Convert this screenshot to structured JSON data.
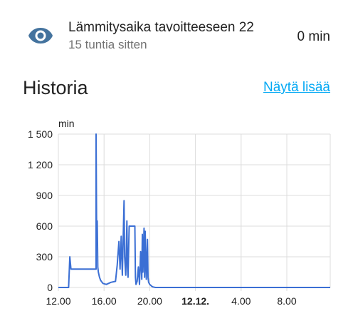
{
  "entity": {
    "icon": "eye-icon",
    "name": "Lämmitysaika tavoitteeseen 22",
    "last_changed": "15 tuntia sitten",
    "state": "0 min",
    "icon_color": "#44739e"
  },
  "history": {
    "title": "Historia",
    "more_label": "Näytä lisää",
    "link_color": "#03a9f4"
  },
  "chart_data": {
    "type": "line",
    "unit_label": "min",
    "y_ticks": [
      "1 500",
      "1 200",
      "900",
      "600",
      "300",
      "0"
    ],
    "ylim": [
      0,
      1500
    ],
    "x_ticks": [
      "12.00",
      "16.00",
      "20.00",
      "12.12.",
      "4.00",
      "8.00"
    ],
    "x_ticks_bold": [
      false,
      false,
      false,
      true,
      false,
      false
    ],
    "xlim_hours": [
      12,
      35.8
    ],
    "grid": true,
    "line_color": "#3b6fd4",
    "series": [
      {
        "x": [
          12.0,
          12.9,
          13.0,
          13.1,
          13.2,
          15.3,
          15.3,
          15.35,
          15.4,
          15.45,
          15.5,
          15.6,
          15.7,
          15.9,
          16.2,
          16.6,
          17.0,
          17.15,
          17.3,
          17.4,
          17.5,
          17.6,
          17.7,
          17.75,
          17.8,
          17.9,
          18.0,
          18.05,
          18.1,
          18.2,
          18.3,
          18.4,
          18.5,
          18.6,
          18.7,
          18.75,
          18.8,
          18.9,
          19.0,
          19.1,
          19.2,
          19.3,
          19.35,
          19.4,
          19.5,
          19.55,
          19.6,
          19.7,
          19.8,
          19.85,
          19.9,
          20.0,
          20.1,
          20.2,
          20.3,
          20.5,
          21.0,
          24.0,
          28.0,
          32.0,
          35.8
        ],
        "y": [
          0,
          0,
          300,
          180,
          180,
          180,
          1500,
          500,
          650,
          200,
          150,
          100,
          70,
          40,
          30,
          50,
          60,
          220,
          450,
          180,
          500,
          120,
          600,
          850,
          300,
          120,
          650,
          200,
          100,
          600,
          600,
          600,
          600,
          600,
          600,
          100,
          30,
          60,
          200,
          30,
          350,
          80,
          520,
          150,
          580,
          100,
          550,
          80,
          470,
          100,
          50,
          30,
          20,
          10,
          5,
          0,
          0,
          0,
          0,
          0,
          0
        ]
      }
    ]
  }
}
